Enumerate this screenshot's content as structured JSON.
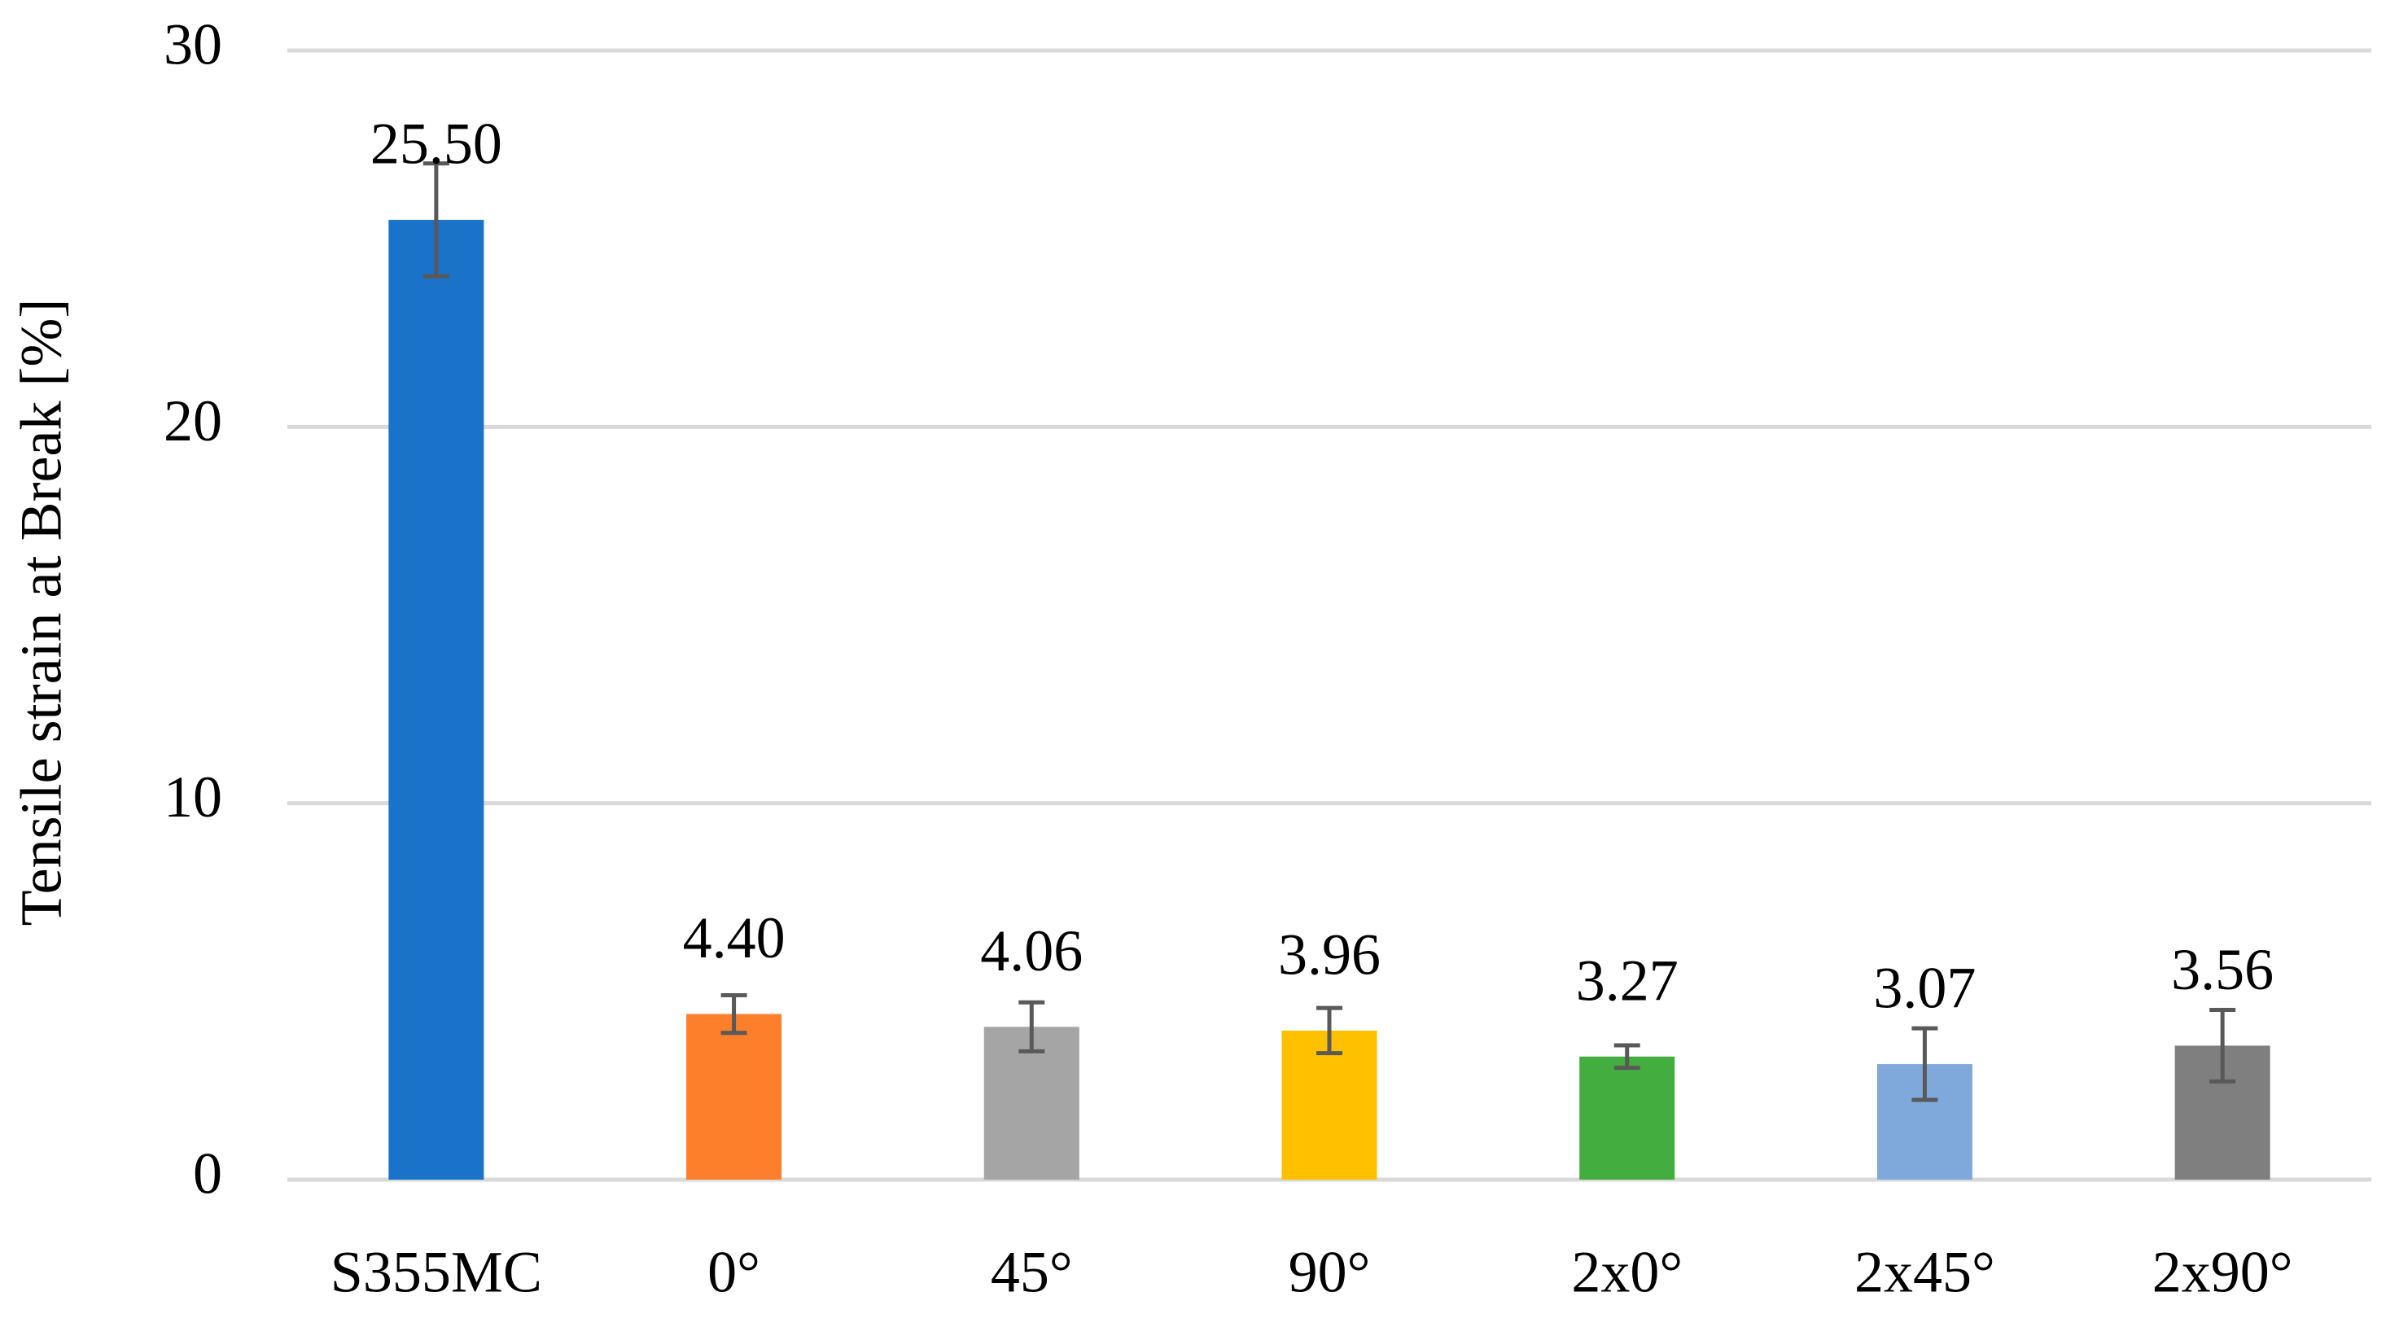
{
  "chart_data": {
    "type": "bar",
    "y_label": "Tensile strain at Break [%]",
    "categories": [
      "S355MC",
      "0°",
      "45°",
      "90°",
      "2x0°",
      "2x45°",
      "2x90°"
    ],
    "values": [
      25.5,
      4.4,
      4.06,
      3.96,
      3.27,
      3.07,
      3.56
    ],
    "value_labels": [
      "25.50",
      "4.40",
      "4.06",
      "3.96",
      "3.27",
      "3.07",
      "3.56"
    ],
    "errors": [
      1.5,
      0.5,
      0.65,
      0.6,
      0.3,
      0.95,
      0.95
    ],
    "colors": [
      "#1a73c8",
      "#fd7f2c",
      "#a5a5a5",
      "#ffc000",
      "#44ad3f",
      "#7fa9db",
      "#7f7f7f"
    ],
    "ylim": [
      0,
      30
    ],
    "yticks": [
      0,
      10,
      20,
      30
    ],
    "grid": true
  }
}
